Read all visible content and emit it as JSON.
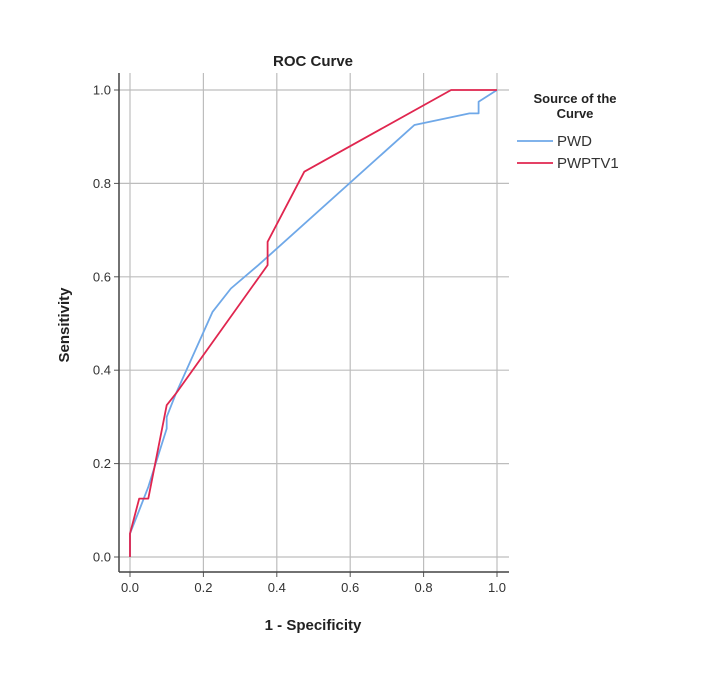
{
  "chart_data": {
    "type": "line",
    "title": "ROC Curve",
    "xlabel": "1 - Specificity",
    "ylabel": "Sensitivity",
    "xlim": [
      0,
      1
    ],
    "ylim": [
      0,
      1
    ],
    "xticks": [
      "0.0",
      "0.2",
      "0.4",
      "0.6",
      "0.8",
      "1.0"
    ],
    "yticks": [
      "0.0",
      "0.2",
      "0.4",
      "0.6",
      "0.8",
      "1.0"
    ],
    "grid": true,
    "legend": {
      "title_lines": [
        "Source of the",
        "Curve"
      ],
      "placement": "right"
    },
    "series": [
      {
        "name": "PWD",
        "color": "#6fa8e8",
        "points": [
          [
            0.0,
            0.0
          ],
          [
            0.0,
            0.05
          ],
          [
            0.025,
            0.1
          ],
          [
            0.05,
            0.15
          ],
          [
            0.1,
            0.275
          ],
          [
            0.1,
            0.3
          ],
          [
            0.125,
            0.35
          ],
          [
            0.225,
            0.525
          ],
          [
            0.275,
            0.575
          ],
          [
            0.35,
            0.625
          ],
          [
            0.775,
            0.925
          ],
          [
            0.925,
            0.95
          ],
          [
            0.95,
            0.95
          ],
          [
            0.95,
            0.975
          ],
          [
            1.0,
            1.0
          ]
        ]
      },
      {
        "name": "PWPTV1",
        "color": "#e0264f",
        "points": [
          [
            0.0,
            0.0
          ],
          [
            0.0,
            0.05
          ],
          [
            0.025,
            0.125
          ],
          [
            0.05,
            0.125
          ],
          [
            0.1,
            0.325
          ],
          [
            0.125,
            0.35
          ],
          [
            0.375,
            0.625
          ],
          [
            0.375,
            0.675
          ],
          [
            0.475,
            0.825
          ],
          [
            0.875,
            1.0
          ],
          [
            1.0,
            1.0
          ]
        ]
      }
    ]
  }
}
